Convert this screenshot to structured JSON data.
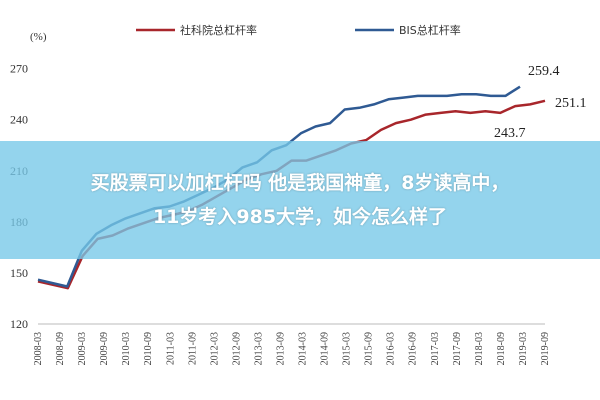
{
  "chart_data": {
    "type": "line",
    "unit_label": "(%)",
    "y_ticks": [
      120,
      150,
      180,
      210,
      240,
      270
    ],
    "ylim": [
      120,
      278
    ],
    "x_tick_labels": [
      "2008-03",
      "2008-09",
      "2009-03",
      "2009-09",
      "2010-03",
      "2010-09",
      "2011-03",
      "2011-09",
      "2012-03",
      "2012-09",
      "2013-03",
      "2013-09",
      "2014-03",
      "2014-09",
      "2015-03",
      "2015-09",
      "2016-03",
      "2016-09",
      "2017-03",
      "2017-09",
      "2018-03",
      "2018-09",
      "2019-03",
      "2019-09"
    ],
    "series": [
      {
        "name": "社科院总杠杆率",
        "color": "#a8262b",
        "values": [
          145,
          143,
          141,
          160,
          170,
          172,
          176,
          179,
          182,
          184,
          186,
          190,
          195,
          200,
          205,
          208,
          210,
          216,
          216,
          219,
          222,
          226,
          228,
          234,
          238,
          240,
          243,
          244,
          245,
          244,
          245,
          244,
          248,
          249,
          251.1
        ]
      },
      {
        "name": "BIS总杠杆率",
        "color": "#2f5a93",
        "values": [
          146,
          144,
          142,
          163,
          173,
          178,
          182,
          185,
          188,
          189,
          192,
          196,
          200,
          205,
          212,
          215,
          222,
          225,
          232,
          236,
          238,
          246,
          247,
          249,
          252,
          253,
          254,
          254,
          254,
          255,
          255,
          254,
          254,
          259.4
        ]
      }
    ],
    "annotations": [
      "259.4",
      "251.1",
      "243.7"
    ]
  },
  "banner": {
    "line1": "买股票可以加杠杆吗 他是我国神童，8岁读高中，",
    "line2": "11岁考入985大学，如今怎么样了"
  }
}
